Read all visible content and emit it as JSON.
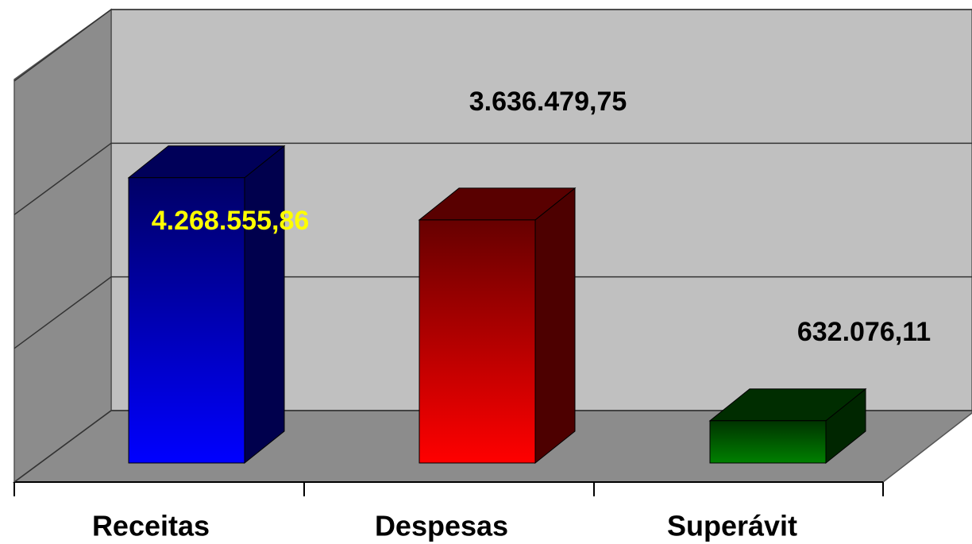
{
  "chart_data": {
    "type": "bar3d",
    "categories": [
      "Receitas",
      "Despesas",
      "Superávit"
    ],
    "values": [
      4268555.86,
      3636479.75,
      632076.11
    ],
    "value_labels": [
      "4.268.555,86",
      "3.636.479,75",
      "632.076,11"
    ],
    "colors": [
      "#0000ff",
      "#ff0000",
      "#008000"
    ],
    "ylim": [
      0,
      6000000
    ],
    "yticks": [
      0,
      2000000,
      4000000,
      6000000
    ],
    "grid": true
  }
}
